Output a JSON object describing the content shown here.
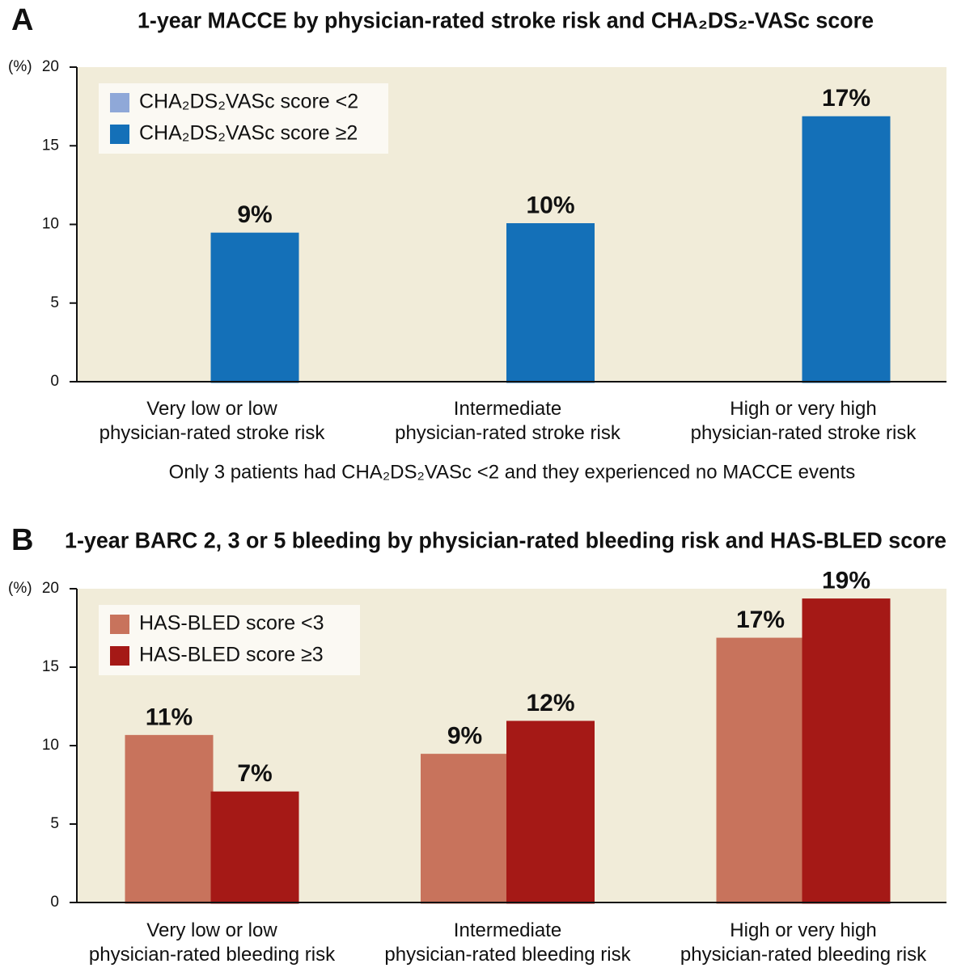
{
  "chart_data": [
    {
      "type": "bar",
      "label": "A",
      "title": "1-year MACCE by physician-rated stroke risk and CHA₂DS₂-VASc score",
      "y_label": "(%)",
      "categories": [
        "Very low or low\nphysician-rated stroke risk",
        "Intermediate\nphysician-rated stroke risk",
        "High or very high\nphysician-rated stroke risk"
      ],
      "series": [
        {
          "name": "CHA₂DS₂VASc score <2",
          "color": "#8fa8d8",
          "values": [
            0,
            0,
            0
          ]
        },
        {
          "name": "CHA₂DS₂VASc score ≥2",
          "color": "#1470b8",
          "values": [
            9.4,
            10,
            16.8
          ],
          "value_labels": [
            "9%",
            "10%",
            "17%"
          ]
        }
      ],
      "ylim": [
        0,
        20
      ],
      "yticks": [
        0,
        5,
        10,
        15,
        20
      ],
      "grid": false,
      "legend": "upper-left",
      "annotation": "Only 3 patients had CHA₂DS₂VASc <2 and they experienced no MACCE events"
    },
    {
      "type": "bar",
      "label": "B",
      "title": "1-year BARC 2, 3 or 5 bleeding by physician-rated bleeding risk and HAS-BLED score",
      "y_label": "(%)",
      "categories": [
        "Very low or low\nphysician-rated bleeding risk",
        "Intermediate\nphysician-rated bleeding risk",
        "High or very high\nphysician-rated bleeding risk"
      ],
      "series": [
        {
          "name": "HAS-BLED score <3",
          "color": "#c8735c",
          "values": [
            10.6,
            9.4,
            16.8
          ],
          "value_labels": [
            "11%",
            "9%",
            "17%"
          ]
        },
        {
          "name": "HAS-BLED score ≥3",
          "color": "#a51916",
          "values": [
            7,
            11.5,
            19.3
          ],
          "value_labels": [
            "7%",
            "12%",
            "19%"
          ]
        }
      ],
      "ylim": [
        0,
        20
      ],
      "yticks": [
        0,
        5,
        10,
        15,
        20
      ],
      "grid": false,
      "legend": "upper-left"
    }
  ]
}
